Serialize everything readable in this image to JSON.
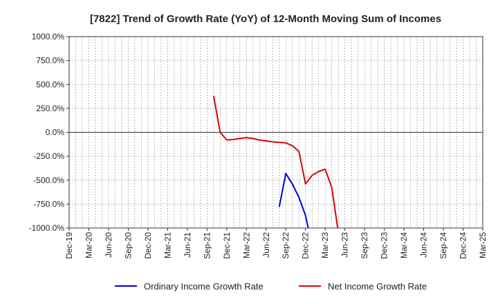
{
  "chart_data": {
    "type": "line",
    "title": "[7822]  Trend of Growth Rate (YoY) of 12-Month Moving Sum of Incomes",
    "xlabel": "",
    "ylabel": "",
    "ylim": [
      -1000,
      1000
    ],
    "yticks": [
      1000,
      750,
      500,
      250,
      0,
      -250,
      -500,
      -750,
      -1000
    ],
    "ytick_labels": [
      "1000.0%",
      "750.0%",
      "500.0%",
      "250.0%",
      "0.0%",
      "-250.0%",
      "-500.0%",
      "-750.0%",
      "-1000.0%"
    ],
    "xlim": [
      "2019-12",
      "2025-03"
    ],
    "xtick_labels": [
      "Dec-19",
      "Mar-20",
      "Jun-20",
      "Sep-20",
      "Dec-20",
      "Mar-21",
      "Jun-21",
      "Sep-21",
      "Dec-21",
      "Mar-22",
      "Jun-22",
      "Sep-22",
      "Dec-22",
      "Mar-23",
      "Jun-23",
      "Sep-23",
      "Dec-23",
      "Mar-24",
      "Jun-24",
      "Sep-24",
      "Dec-24",
      "Mar-25"
    ],
    "grid": true,
    "legend": "bottom",
    "series": [
      {
        "name": "Ordinary Income Growth Rate",
        "color": "#0000cc",
        "points": [
          {
            "x": "2022-08",
            "y": -780
          },
          {
            "x": "2022-09",
            "y": -430
          },
          {
            "x": "2022-10",
            "y": -540
          },
          {
            "x": "2022-11",
            "y": -680
          },
          {
            "x": "2022-12",
            "y": -870
          },
          {
            "x": "2023-01",
            "y": -1180
          }
        ]
      },
      {
        "name": "Net Income Growth Rate",
        "color": "#dd0000",
        "points": [
          {
            "x": "2021-10",
            "y": 380
          },
          {
            "x": "2021-11",
            "y": 0
          },
          {
            "x": "2021-12",
            "y": -80
          },
          {
            "x": "2022-01",
            "y": -75
          },
          {
            "x": "2022-02",
            "y": -65
          },
          {
            "x": "2022-03",
            "y": -55
          },
          {
            "x": "2022-04",
            "y": -65
          },
          {
            "x": "2022-05",
            "y": -80
          },
          {
            "x": "2022-06",
            "y": -90
          },
          {
            "x": "2022-07",
            "y": -100
          },
          {
            "x": "2022-08",
            "y": -105
          },
          {
            "x": "2022-09",
            "y": -110
          },
          {
            "x": "2022-10",
            "y": -140
          },
          {
            "x": "2022-11",
            "y": -200
          },
          {
            "x": "2022-12",
            "y": -540
          },
          {
            "x": "2023-01",
            "y": -450
          },
          {
            "x": "2023-02",
            "y": -410
          },
          {
            "x": "2023-03",
            "y": -385
          },
          {
            "x": "2023-04",
            "y": -580
          },
          {
            "x": "2023-05",
            "y": -1050
          }
        ]
      }
    ]
  }
}
